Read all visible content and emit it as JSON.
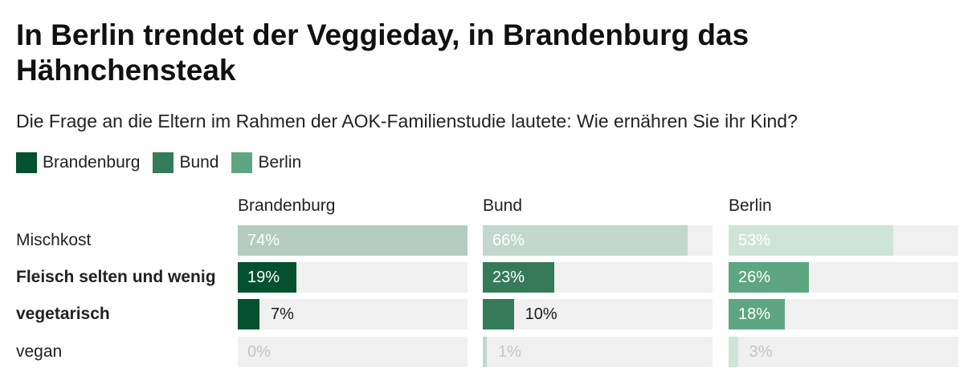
{
  "title": "In Berlin trendet der Veggieday, in Brandenburg das Hähnchensteak",
  "subtitle": "Die Frage an die Eltern im Rahmen der AOK-Familienstudie lautete: Wie ernähren Sie ihr Kind?",
  "colors": {
    "brandenburg": "#04512f",
    "bund": "#357b5a",
    "berlin": "#5ea681",
    "track": "#f0f0f0"
  },
  "legend": [
    {
      "label": "Brandenburg",
      "color": "#04512f"
    },
    {
      "label": "Bund",
      "color": "#357b5a"
    },
    {
      "label": "Berlin",
      "color": "#5ea681"
    }
  ],
  "chart_data": {
    "type": "bar",
    "orientation": "horizontal",
    "layout": "small-multiples",
    "categories": [
      "Mischkost",
      "Fleisch selten und wenig",
      "vegetarisch",
      "vegan"
    ],
    "bold_categories": [
      false,
      true,
      true,
      false
    ],
    "series": [
      {
        "name": "Brandenburg",
        "values": [
          74,
          19,
          7,
          0
        ],
        "labels": [
          "74%",
          "19%",
          "7%",
          "0%"
        ]
      },
      {
        "name": "Bund",
        "values": [
          66,
          23,
          10,
          1
        ],
        "labels": [
          "66%",
          "23%",
          "10%",
          "1%"
        ]
      },
      {
        "name": "Berlin",
        "values": [
          53,
          26,
          18,
          3
        ],
        "labels": [
          "53%",
          "26%",
          "18%",
          "3%"
        ]
      }
    ],
    "xlim": [
      0,
      74
    ],
    "unit": "%",
    "legend_position": "top-left",
    "grid": false
  }
}
